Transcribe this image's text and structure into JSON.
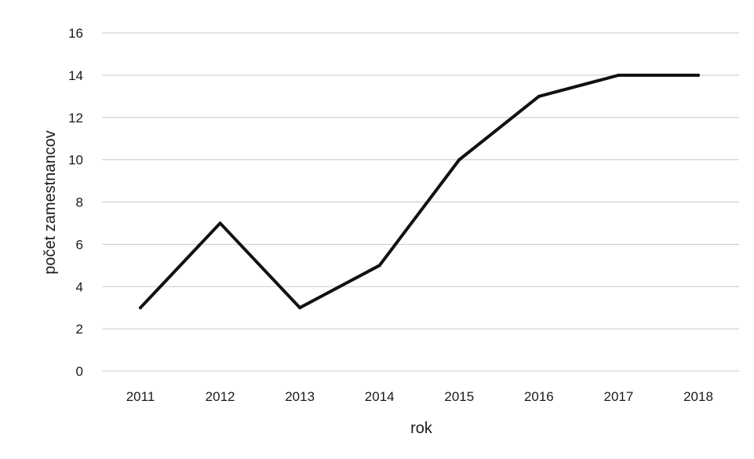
{
  "chart_data": {
    "type": "line",
    "title": "",
    "xlabel": "rok",
    "ylabel": "počet zamestnancov",
    "categories": [
      "2011",
      "2012",
      "2013",
      "2014",
      "2015",
      "2016",
      "2017",
      "2018"
    ],
    "series": [
      {
        "values": [
          3,
          7,
          3,
          5,
          10,
          13,
          14,
          14
        ]
      }
    ],
    "ylim": [
      0,
      16
    ],
    "yticks": [
      0,
      2,
      4,
      6,
      8,
      10,
      12,
      14,
      16
    ],
    "grid": true,
    "legend": "none",
    "colors": {
      "line": "#111111",
      "grid": "#c9c9c9"
    }
  }
}
